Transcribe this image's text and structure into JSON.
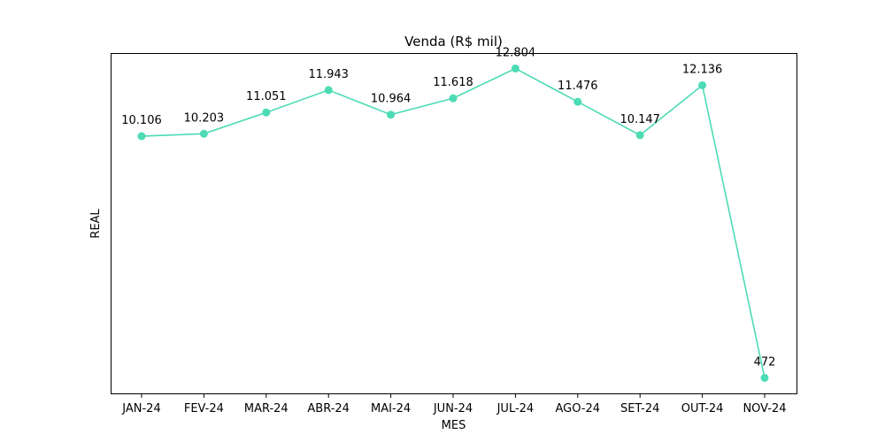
{
  "chart_data": {
    "type": "line",
    "title": "Venda (R$ mil)",
    "xlabel": "MES",
    "ylabel": "REAL",
    "categories": [
      "JAN-24",
      "FEV-24",
      "MAR-24",
      "ABR-24",
      "MAI-24",
      "JUN-24",
      "JUL-24",
      "AGO-24",
      "SET-24",
      "OUT-24",
      "NOV-24"
    ],
    "series": [
      {
        "values": [
          10106,
          10203,
          11051,
          11943,
          10964,
          11618,
          12804,
          11476,
          10147,
          12136,
          472
        ],
        "labels": [
          "10.106",
          "10.203",
          "11.051",
          "11.943",
          "10.964",
          "11.618",
          "12.804",
          "11.476",
          "10.147",
          "12.136",
          "472"
        ],
        "color": "#4ddbb5",
        "marker": "circle"
      }
    ],
    "ylim": [
      -145,
      13420
    ],
    "y_ticks_visible": false,
    "grid": false,
    "legend": "none"
  }
}
